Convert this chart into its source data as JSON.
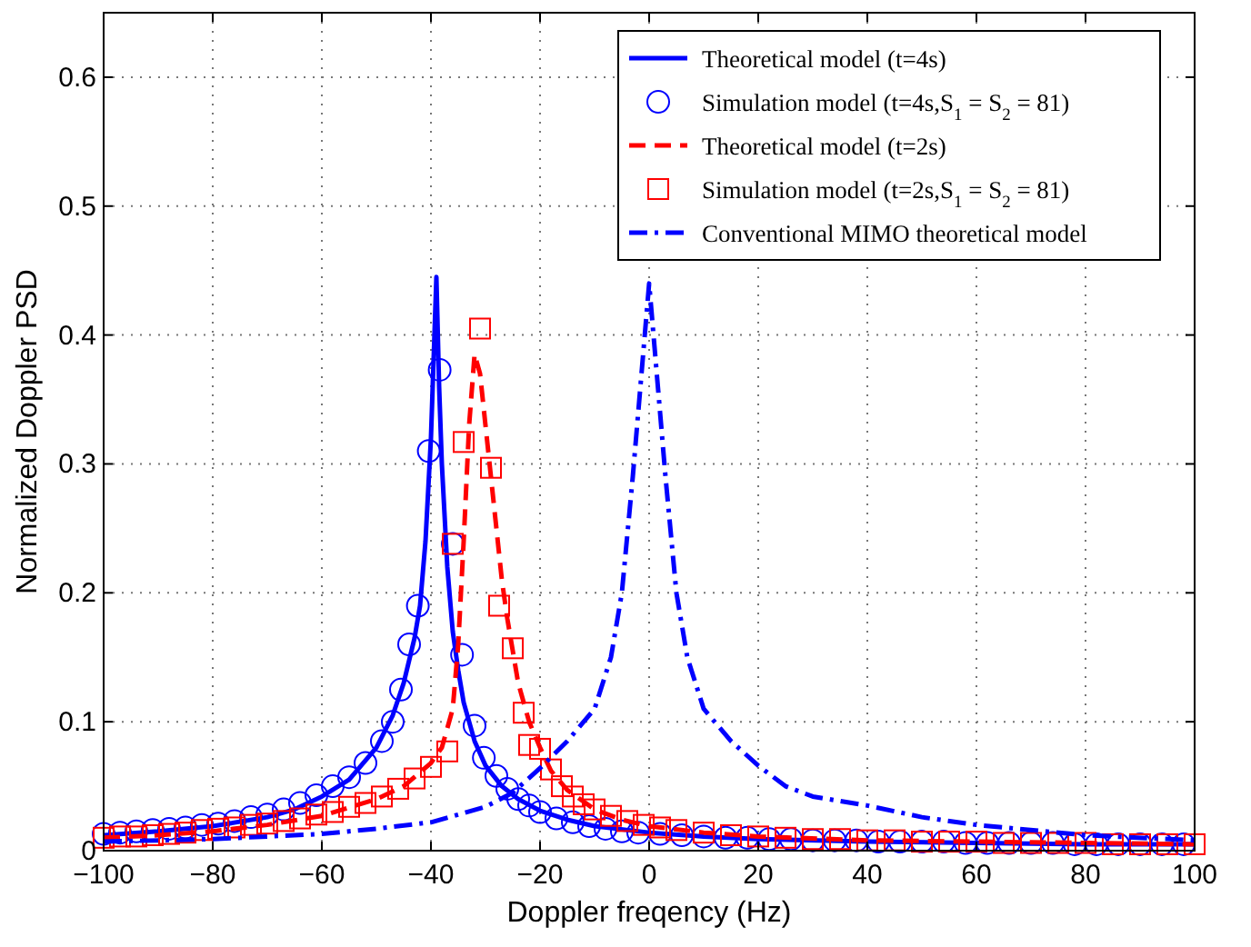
{
  "chart_data": {
    "type": "line",
    "xlabel": "Doppler freqency (Hz)",
    "ylabel": "Normalized Doppler PSD",
    "xlim": [
      -100,
      100
    ],
    "ylim": [
      0,
      0.65
    ],
    "xticks": [
      -100,
      -80,
      -60,
      -40,
      -20,
      0,
      20,
      40,
      60,
      80,
      100
    ],
    "yticks": [
      0,
      0.1,
      0.2,
      0.3,
      0.4,
      0.5,
      0.6
    ],
    "grid": true,
    "legend": "top right",
    "series": [
      {
        "name": "Theoretical model (t=4s)",
        "color": "#0000ff",
        "line_style": "solid",
        "x": [
          -100,
          -90,
          -80,
          -70,
          -65,
          -60,
          -55,
          -50,
          -47,
          -45,
          -43,
          -42,
          -41,
          -40,
          -39,
          -38.5,
          -38,
          -37,
          -36,
          -35,
          -34,
          -32,
          -30,
          -27,
          -24,
          -20,
          -15,
          -10,
          0,
          10,
          20,
          40,
          60,
          80,
          100
        ],
        "values": [
          0.012,
          0.015,
          0.019,
          0.026,
          0.032,
          0.042,
          0.055,
          0.08,
          0.105,
          0.13,
          0.165,
          0.19,
          0.24,
          0.32,
          0.445,
          0.36,
          0.3,
          0.22,
          0.17,
          0.14,
          0.115,
          0.085,
          0.066,
          0.05,
          0.04,
          0.031,
          0.024,
          0.019,
          0.014,
          0.011,
          0.009,
          0.007,
          0.006,
          0.005,
          0.005
        ]
      },
      {
        "name": "Simulation model (t=4s,S$_{1}$ = S$_{2}$ = 81)",
        "type": "scatter",
        "color": "#0000ff",
        "marker": "circle",
        "x": [
          -100,
          -97,
          -94,
          -91,
          -88,
          -85,
          -82,
          -79,
          -76,
          -73,
          -70,
          -67,
          -64,
          -61,
          -58,
          -55,
          -52,
          -49,
          -47,
          -45.5,
          -44,
          -42.4,
          -40.4,
          -38.4,
          -36,
          -34.3,
          -32,
          -30.3,
          -28,
          -26,
          -24,
          -22,
          -20,
          -17,
          -14,
          -11,
          -8,
          -5,
          -2,
          2,
          6,
          10,
          14,
          18,
          22,
          26,
          30,
          34,
          38,
          42,
          46,
          50,
          54,
          58,
          62,
          66,
          70,
          74,
          78,
          82,
          86,
          90,
          94,
          98
        ],
        "values": [
          0.013,
          0.014,
          0.015,
          0.016,
          0.017,
          0.018,
          0.02,
          0.021,
          0.023,
          0.026,
          0.028,
          0.032,
          0.037,
          0.043,
          0.05,
          0.057,
          0.068,
          0.085,
          0.1,
          0.125,
          0.16,
          0.19,
          0.31,
          0.373,
          0.238,
          0.152,
          0.097,
          0.072,
          0.058,
          0.048,
          0.04,
          0.035,
          0.03,
          0.025,
          0.022,
          0.019,
          0.017,
          0.015,
          0.014,
          0.013,
          0.012,
          0.011,
          0.01,
          0.01,
          0.009,
          0.009,
          0.008,
          0.008,
          0.008,
          0.007,
          0.007,
          0.007,
          0.007,
          0.006,
          0.006,
          0.006,
          0.006,
          0.006,
          0.005,
          0.005,
          0.005,
          0.005,
          0.005,
          0.005
        ]
      },
      {
        "name": "Theoretical model (t=2s)",
        "color": "#ff0000",
        "line_style": "dashed",
        "x": [
          -100,
          -90,
          -80,
          -70,
          -60,
          -50,
          -45,
          -40,
          -38,
          -36,
          -35,
          -34,
          -33,
          -32,
          -31,
          -30,
          -29,
          -28,
          -27,
          -26,
          -25,
          -24,
          -22,
          -20,
          -18,
          -15,
          -10,
          -5,
          0,
          10,
          20,
          40,
          60,
          80,
          100
        ],
        "values": [
          0.01,
          0.012,
          0.015,
          0.02,
          0.027,
          0.04,
          0.05,
          0.068,
          0.08,
          0.11,
          0.16,
          0.24,
          0.33,
          0.385,
          0.37,
          0.33,
          0.29,
          0.25,
          0.21,
          0.18,
          0.155,
          0.13,
          0.1,
          0.08,
          0.062,
          0.047,
          0.032,
          0.024,
          0.019,
          0.014,
          0.011,
          0.008,
          0.007,
          0.006,
          0.005
        ]
      },
      {
        "name": "Simulation model (t=2s,S$_{1}$ = S$_{2}$ = 81)",
        "type": "scatter",
        "color": "#ff0000",
        "marker": "square",
        "x": [
          -100,
          -97,
          -94,
          -91,
          -88,
          -85,
          -82,
          -79,
          -76,
          -73,
          -70,
          -67,
          -64,
          -61,
          -58,
          -55,
          -52,
          -49,
          -46,
          -43,
          -40,
          -37,
          -36,
          -34,
          -31,
          -29,
          -27.5,
          -25,
          -23,
          -22,
          -20,
          -18,
          -16,
          -14,
          -12,
          -10,
          -7,
          -4,
          -1,
          2,
          5,
          10,
          15,
          20,
          25,
          30,
          35,
          40,
          45,
          50,
          55,
          60,
          65,
          70,
          75,
          80,
          85,
          90,
          95,
          100
        ],
        "values": [
          0.01,
          0.011,
          0.011,
          0.012,
          0.013,
          0.014,
          0.016,
          0.017,
          0.018,
          0.02,
          0.021,
          0.023,
          0.025,
          0.028,
          0.03,
          0.034,
          0.037,
          0.042,
          0.048,
          0.056,
          0.065,
          0.077,
          0.238,
          0.317,
          0.405,
          0.297,
          0.19,
          0.157,
          0.107,
          0.082,
          0.079,
          0.063,
          0.05,
          0.042,
          0.036,
          0.032,
          0.027,
          0.023,
          0.02,
          0.018,
          0.016,
          0.014,
          0.012,
          0.011,
          0.01,
          0.009,
          0.009,
          0.008,
          0.008,
          0.007,
          0.007,
          0.007,
          0.006,
          0.006,
          0.006,
          0.006,
          0.005,
          0.005,
          0.005,
          0.005
        ]
      },
      {
        "name": "Conventional MIMO theoretical model",
        "color": "#0000ff",
        "line_style": "dashdot",
        "x": [
          -100,
          -80,
          -60,
          -50,
          -40,
          -30,
          -25,
          -20,
          -15,
          -10,
          -7,
          -5,
          -3,
          -2,
          -1,
          0,
          1,
          2,
          3,
          5,
          7,
          10,
          15,
          20,
          25,
          30,
          40,
          50,
          60,
          80,
          100
        ],
        "values": [
          0.007,
          0.009,
          0.013,
          0.017,
          0.022,
          0.034,
          0.045,
          0.064,
          0.085,
          0.11,
          0.15,
          0.2,
          0.29,
          0.34,
          0.39,
          0.44,
          0.39,
          0.34,
          0.29,
          0.2,
          0.15,
          0.11,
          0.085,
          0.066,
          0.05,
          0.042,
          0.035,
          0.026,
          0.02,
          0.012,
          0.008
        ]
      }
    ]
  }
}
